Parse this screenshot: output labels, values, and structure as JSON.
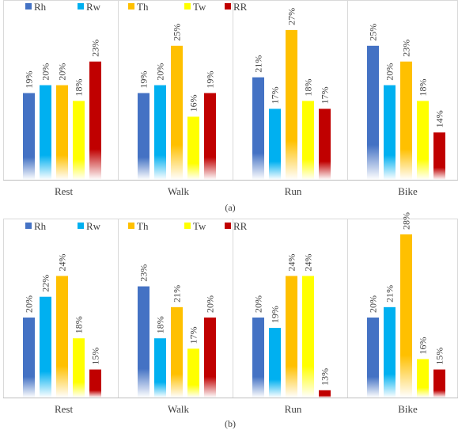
{
  "chart_data": [
    {
      "type": "bar",
      "caption": "(a)",
      "categories": [
        "Rest",
        "Walk",
        "Run",
        "Bike"
      ],
      "series": [
        {
          "name": "Rh",
          "color": "#4472C4",
          "values": [
            19,
            19,
            21,
            25
          ],
          "labels": [
            "19%",
            "19%",
            "21%",
            "25%"
          ]
        },
        {
          "name": "Rw",
          "color": "#00B0F0",
          "values": [
            20,
            20,
            17,
            20
          ],
          "labels": [
            "20%",
            "20%",
            "17%",
            "20%"
          ]
        },
        {
          "name": "Th",
          "color": "#FFC000",
          "values": [
            20,
            25,
            27,
            23
          ],
          "labels": [
            "20%",
            "25%",
            "27%",
            "23%"
          ]
        },
        {
          "name": "Tw",
          "color": "#FFFF00",
          "values": [
            18,
            16,
            18,
            18
          ],
          "labels": [
            "18%",
            "16%",
            "18%",
            "18%"
          ]
        },
        {
          "name": "RR",
          "color": "#C00000",
          "values": [
            23,
            19,
            17,
            14
          ],
          "labels": [
            "23%",
            "19%",
            "17%",
            "14%"
          ]
        }
      ],
      "ylim": [
        8,
        29
      ],
      "legend": "top-left",
      "grid": false
    },
    {
      "type": "bar",
      "caption": "(b)",
      "categories": [
        "Rest",
        "Walk",
        "Run",
        "Bike"
      ],
      "series": [
        {
          "name": "Rh",
          "color": "#4472C4",
          "values": [
            20,
            23,
            20,
            20
          ],
          "labels": [
            "20%",
            "23%",
            "20%",
            "20%"
          ]
        },
        {
          "name": "Rw",
          "color": "#00B0F0",
          "values": [
            22,
            18,
            19,
            21
          ],
          "labels": [
            "22%",
            "18%",
            "19%",
            "21%"
          ]
        },
        {
          "name": "Th",
          "color": "#FFC000",
          "values": [
            24,
            21,
            24,
            28
          ],
          "labels": [
            "24%",
            "21%",
            "24%",
            "28%"
          ]
        },
        {
          "name": "Tw",
          "color": "#FFFF00",
          "values": [
            18,
            17,
            24,
            16
          ],
          "labels": [
            "18%",
            "17%",
            "24%",
            "16%"
          ]
        },
        {
          "name": "RR",
          "color": "#C00000",
          "values": [
            15,
            20,
            13,
            15
          ],
          "labels": [
            "15%",
            "20%",
            "13%",
            "15%"
          ]
        }
      ],
      "ylim": [
        12.3,
        28
      ],
      "legend": "top-left",
      "grid": false
    }
  ]
}
